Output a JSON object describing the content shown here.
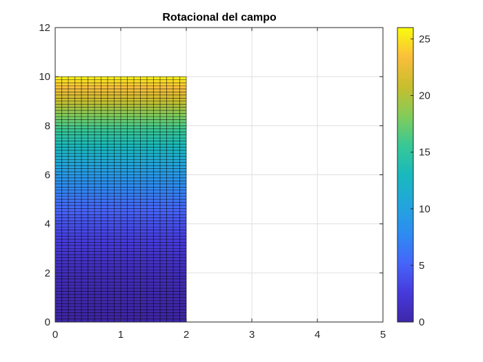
{
  "chart_data": {
    "type": "heatmap",
    "title": "Rotacional del campo",
    "xlabel": "",
    "ylabel": "",
    "xlim": [
      0,
      5
    ],
    "ylim": [
      0,
      12
    ],
    "x_ticks": [
      0,
      1,
      2,
      3,
      4,
      5
    ],
    "y_ticks": [
      0,
      2,
      4,
      6,
      8,
      10,
      12
    ],
    "grid": true,
    "surface": {
      "x_range": [
        0,
        2
      ],
      "y_range": [
        0,
        10
      ],
      "x_cells": 20,
      "y_cells": 80,
      "value_formula": "z = 0.26 * y^2",
      "value_min": 0,
      "value_max": 26,
      "edge_color": "#000000"
    },
    "colorbar": {
      "limits": [
        0,
        26
      ],
      "ticks": [
        0,
        5,
        10,
        15,
        20,
        25
      ],
      "colormap": "parula",
      "placement": "right"
    }
  }
}
